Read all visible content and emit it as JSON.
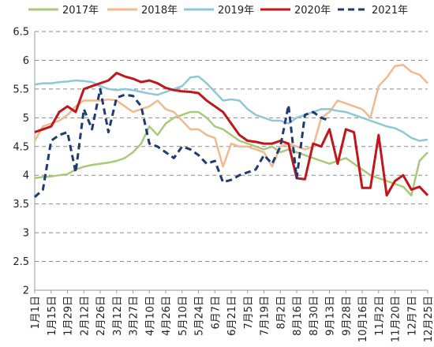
{
  "chart_data": {
    "type": "line",
    "legend_position": "top",
    "grid": "horizontal-dashed",
    "ylim": [
      2,
      6.5
    ],
    "y_ticks": [
      "2",
      "2.5",
      "3",
      "3.5",
      "4",
      "4.5",
      "5",
      "5.5",
      "6",
      "6.5"
    ],
    "x_ticks": [
      "1月1日",
      "1月15日",
      "1月29日",
      "2月12日",
      "2月26日",
      "3月12日",
      "3月27日",
      "4月10日",
      "4月26日",
      "5月10日",
      "5月24日",
      "6月7日",
      "6月21日",
      "7月5日",
      "7月19日",
      "8月2日",
      "8月16日",
      "8月30日",
      "9月13日",
      "9月28日",
      "10月16日",
      "11月2日",
      "11月20日",
      "12月7日",
      "12月25日"
    ],
    "series": [
      {
        "name": "2017年",
        "color": "#a9c97a",
        "dash": "solid",
        "x": [
          0,
          0.5,
          1,
          1.5,
          2,
          2.5,
          3,
          3.5,
          4,
          4.5,
          5,
          5.5,
          6,
          6.5,
          7,
          7.5,
          8,
          8.5,
          9,
          9.5,
          10,
          10.5,
          11,
          11.5,
          12,
          12.5,
          13,
          13.5,
          14,
          14.5,
          15,
          15.5,
          16,
          16.5,
          17,
          17.5,
          18,
          18.5,
          19,
          19.5,
          20,
          20.5,
          21,
          21.5,
          22,
          22.5,
          23,
          23.5,
          24
        ],
        "y": [
          3.95,
          3.97,
          3.98,
          4.0,
          4.02,
          4.1,
          4.15,
          4.18,
          4.2,
          4.22,
          4.25,
          4.3,
          4.4,
          4.55,
          4.85,
          4.7,
          4.9,
          5.0,
          5.05,
          5.1,
          5.1,
          5.0,
          4.85,
          4.8,
          4.7,
          4.6,
          4.55,
          4.5,
          4.45,
          4.5,
          4.4,
          4.45,
          4.4,
          4.35,
          4.3,
          4.25,
          4.2,
          4.25,
          4.3,
          4.2,
          4.1,
          4.0,
          3.95,
          3.9,
          3.85,
          3.8,
          3.65,
          4.25,
          4.4
        ]
      },
      {
        "name": "2018年",
        "color": "#f3b98e",
        "dash": "solid",
        "x": [
          0,
          0.5,
          1,
          1.5,
          2,
          2.5,
          3,
          3.5,
          4,
          4.5,
          5,
          5.5,
          6,
          6.5,
          7,
          7.5,
          8,
          8.5,
          9,
          9.5,
          10,
          10.5,
          11,
          11.5,
          12,
          12.5,
          13,
          13.5,
          14,
          14.5,
          15,
          15.5,
          16,
          16.5,
          17,
          17.5,
          18,
          18.5,
          19,
          19.5,
          20,
          20.5,
          21,
          21.5,
          22,
          22.5,
          23,
          23.5,
          24
        ],
        "y": [
          4.6,
          4.85,
          4.9,
          4.95,
          5.05,
          5.2,
          5.3,
          5.3,
          5.3,
          5.32,
          5.3,
          5.2,
          5.1,
          5.15,
          5.2,
          5.3,
          5.15,
          5.1,
          4.95,
          4.8,
          4.8,
          4.7,
          4.65,
          4.15,
          4.55,
          4.5,
          4.5,
          4.45,
          4.4,
          4.15,
          4.5,
          4.55,
          4.5,
          4.45,
          4.5,
          5.0,
          5.1,
          5.3,
          5.25,
          5.2,
          5.15,
          5.0,
          5.55,
          5.7,
          5.9,
          5.92,
          5.8,
          5.75,
          5.6
        ]
      },
      {
        "name": "2019年",
        "color": "#8ec8d8",
        "dash": "solid",
        "x": [
          0,
          0.5,
          1,
          1.5,
          2,
          2.5,
          3,
          3.5,
          4,
          4.5,
          5,
          5.5,
          6,
          6.5,
          7,
          7.5,
          8,
          8.5,
          9,
          9.5,
          10,
          10.5,
          11,
          11.5,
          12,
          12.5,
          13,
          13.5,
          14,
          14.5,
          15,
          15.5,
          16,
          16.5,
          17,
          17.5,
          18,
          18.5,
          19,
          19.5,
          20,
          20.5,
          21,
          21.5,
          22,
          22.5,
          23,
          23.5,
          24
        ],
        "y": [
          5.58,
          5.6,
          5.6,
          5.62,
          5.63,
          5.65,
          5.64,
          5.62,
          5.55,
          5.5,
          5.48,
          5.5,
          5.48,
          5.45,
          5.42,
          5.4,
          5.45,
          5.5,
          5.55,
          5.7,
          5.72,
          5.6,
          5.45,
          5.3,
          5.32,
          5.3,
          5.15,
          5.05,
          5.0,
          4.95,
          4.95,
          4.9,
          5.0,
          5.05,
          5.1,
          5.15,
          5.15,
          5.12,
          5.1,
          5.05,
          5.0,
          4.95,
          4.9,
          4.85,
          4.82,
          4.75,
          4.65,
          4.6,
          4.62
        ]
      },
      {
        "name": "2020年",
        "color": "#c0161c",
        "dash": "solid",
        "x": [
          0,
          0.5,
          1,
          1.5,
          2,
          2.5,
          3,
          3.5,
          4,
          4.5,
          5,
          5.5,
          6,
          6.5,
          7,
          7.5,
          8,
          8.5,
          9,
          9.5,
          10,
          10.5,
          11,
          11.5,
          12,
          12.5,
          13,
          13.5,
          14,
          14.5,
          15,
          15.5,
          16,
          16.5,
          17,
          17.5,
          18,
          18.5,
          19,
          19.5,
          20,
          20.5,
          21,
          21.5,
          22,
          22.5,
          23,
          23.5,
          24
        ],
        "y": [
          4.75,
          4.8,
          4.85,
          5.1,
          5.2,
          5.1,
          5.5,
          5.55,
          5.6,
          5.65,
          5.78,
          5.72,
          5.68,
          5.62,
          5.65,
          5.6,
          5.52,
          5.48,
          5.46,
          5.45,
          5.43,
          5.3,
          5.2,
          5.1,
          4.9,
          4.7,
          4.6,
          4.58,
          4.55,
          4.55,
          4.6,
          4.55,
          3.95,
          3.93,
          4.55,
          4.5,
          4.8,
          4.2,
          4.8,
          4.75,
          3.78,
          3.78,
          4.7,
          3.65,
          3.9,
          4.0,
          3.75,
          3.8,
          3.65
        ]
      },
      {
        "name": "2021年",
        "color": "#1f3b73",
        "dash": "dashed",
        "x": [
          0,
          0.5,
          1,
          1.5,
          2,
          2.5,
          3,
          3.5,
          4,
          4.5,
          5,
          5.5,
          6,
          6.5,
          7,
          7.5,
          8,
          8.5,
          9,
          9.5,
          10,
          10.5,
          11,
          11.5,
          12,
          12.5,
          13,
          13.5,
          14,
          14.5,
          15,
          15.5,
          16,
          16.5,
          17,
          17.5,
          18
        ],
        "y": [
          3.62,
          3.75,
          4.6,
          4.7,
          4.75,
          4.05,
          5.15,
          4.8,
          5.5,
          4.75,
          5.35,
          5.4,
          5.38,
          5.2,
          4.55,
          4.5,
          4.4,
          4.3,
          4.5,
          4.45,
          4.35,
          4.2,
          4.25,
          3.88,
          3.92,
          4.0,
          4.05,
          4.1,
          4.35,
          4.2,
          4.5,
          5.22,
          3.95,
          5.05,
          5.1,
          5.0,
          4.95
        ]
      }
    ]
  }
}
